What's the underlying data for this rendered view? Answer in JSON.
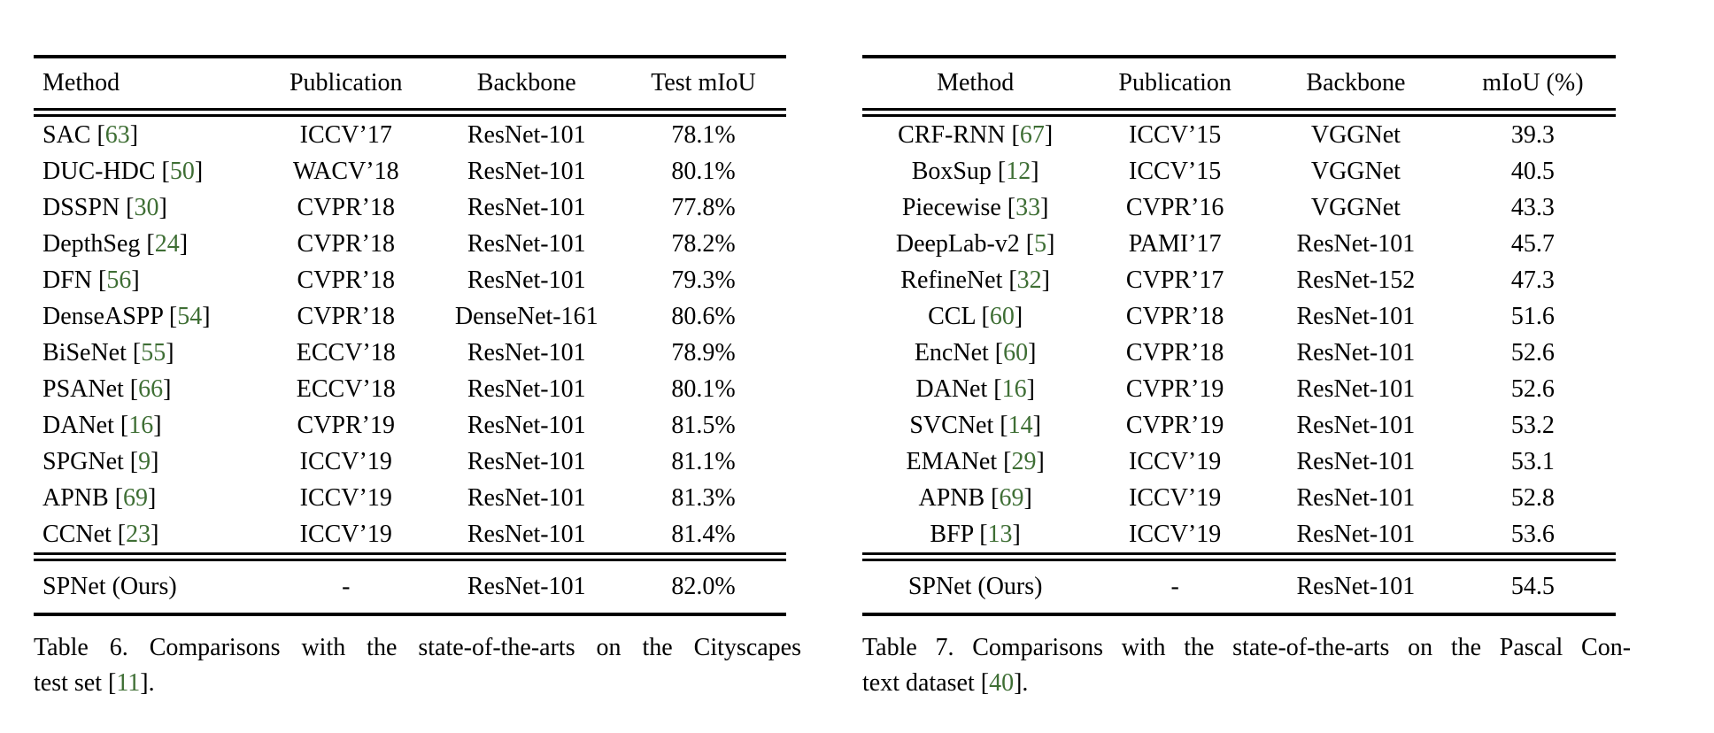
{
  "colors": {
    "citation_green": "#3e6e34",
    "text": "#000000",
    "background": "#ffffff"
  },
  "tables": [
    {
      "columns": [
        "Method",
        "Publication",
        "Backbone",
        "Test mIoU"
      ],
      "rows": [
        {
          "method": "SAC",
          "ref": "63",
          "publication": "ICCV’17",
          "backbone": "ResNet-101",
          "miou": "78.1%"
        },
        {
          "method": "DUC-HDC",
          "ref": "50",
          "publication": "WACV’18",
          "backbone": "ResNet-101",
          "miou": "80.1%"
        },
        {
          "method": "DSSPN",
          "ref": "30",
          "publication": "CVPR’18",
          "backbone": "ResNet-101",
          "miou": "77.8%"
        },
        {
          "method": "DepthSeg",
          "ref": "24",
          "publication": "CVPR’18",
          "backbone": "ResNet-101",
          "miou": "78.2%"
        },
        {
          "method": "DFN",
          "ref": "56",
          "publication": "CVPR’18",
          "backbone": "ResNet-101",
          "miou": "79.3%"
        },
        {
          "method": "DenseASPP",
          "ref": "54",
          "publication": "CVPR’18",
          "backbone": "DenseNet-161",
          "miou": "80.6%"
        },
        {
          "method": "BiSeNet",
          "ref": "55",
          "publication": "ECCV’18",
          "backbone": "ResNet-101",
          "miou": "78.9%"
        },
        {
          "method": "PSANet",
          "ref": "66",
          "publication": "ECCV’18",
          "backbone": "ResNet-101",
          "miou": "80.1%"
        },
        {
          "method": "DANet",
          "ref": "16",
          "publication": "CVPR’19",
          "backbone": "ResNet-101",
          "miou": "81.5%"
        },
        {
          "method": "SPGNet",
          "ref": "9",
          "publication": "ICCV’19",
          "backbone": "ResNet-101",
          "miou": "81.1%"
        },
        {
          "method": "APNB",
          "ref": "69",
          "publication": "ICCV’19",
          "backbone": "ResNet-101",
          "miou": "81.3%"
        },
        {
          "method": "CCNet",
          "ref": "23",
          "publication": "ICCV’19",
          "backbone": "ResNet-101",
          "miou": "81.4%"
        }
      ],
      "ours": {
        "method": "SPNet (Ours)",
        "publication": "-",
        "backbone": "ResNet-101",
        "miou": "82.0%"
      },
      "caption": {
        "line1": "Table 6. Comparisons with the state-of-the-arts on the Cityscapes",
        "line2_prefix": "test set [",
        "line2_ref": "11",
        "line2_suffix": "]."
      }
    },
    {
      "columns": [
        "Method",
        "Publication",
        "Backbone",
        "mIoU (%)"
      ],
      "rows": [
        {
          "method": "CRF-RNN",
          "ref": "67",
          "publication": "ICCV’15",
          "backbone": "VGGNet",
          "miou": "39.3"
        },
        {
          "method": "BoxSup",
          "ref": "12",
          "publication": "ICCV’15",
          "backbone": "VGGNet",
          "miou": "40.5"
        },
        {
          "method": "Piecewise",
          "ref": "33",
          "publication": "CVPR’16",
          "backbone": "VGGNet",
          "miou": "43.3"
        },
        {
          "method": "DeepLab-v2",
          "ref": "5",
          "publication": "PAMI’17",
          "backbone": "ResNet-101",
          "miou": "45.7"
        },
        {
          "method": "RefineNet",
          "ref": "32",
          "publication": "CVPR’17",
          "backbone": "ResNet-152",
          "miou": "47.3"
        },
        {
          "method": "CCL",
          "ref": "60",
          "publication": "CVPR’18",
          "backbone": "ResNet-101",
          "miou": "51.6"
        },
        {
          "method": "EncNet",
          "ref": "60",
          "publication": "CVPR’18",
          "backbone": "ResNet-101",
          "miou": "52.6"
        },
        {
          "method": "DANet",
          "ref": "16",
          "publication": "CVPR’19",
          "backbone": "ResNet-101",
          "miou": "52.6"
        },
        {
          "method": "SVCNet",
          "ref": "14",
          "publication": "CVPR’19",
          "backbone": "ResNet-101",
          "miou": "53.2"
        },
        {
          "method": "EMANet",
          "ref": "29",
          "publication": "ICCV’19",
          "backbone": "ResNet-101",
          "miou": "53.1"
        },
        {
          "method": "APNB",
          "ref": "69",
          "publication": "ICCV’19",
          "backbone": "ResNet-101",
          "miou": "52.8"
        },
        {
          "method": "BFP",
          "ref": "13",
          "publication": "ICCV’19",
          "backbone": "ResNet-101",
          "miou": "53.6"
        }
      ],
      "ours": {
        "method": "SPNet (Ours)",
        "publication": "-",
        "backbone": "ResNet-101",
        "miou": "54.5"
      },
      "caption": {
        "line1": "Table 7. Comparisons with the state-of-the-arts on the Pascal Con-",
        "line2_prefix": "text dataset [",
        "line2_ref": "40",
        "line2_suffix": "]."
      }
    }
  ]
}
